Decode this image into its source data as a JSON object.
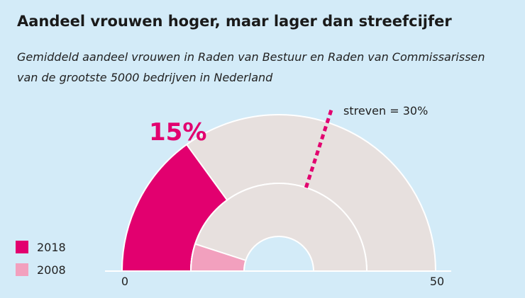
{
  "title": "Aandeel vrouwen hoger, maar lager dan streefcijfer",
  "subtitle": "Gemiddeld aandeel vrouwen in Raden van Bestuur en Raden van Commissarissen van de grootste 5000 bedrijven in Nederland",
  "colors": {
    "background": "#d3ebf8",
    "series_2018": "#e2006f",
    "series_2008": "#f2a0be",
    "track": "#e7e0de",
    "target": "#e2006f"
  },
  "chart_data": {
    "type": "gauge",
    "scale_min": 0,
    "scale_max": 50,
    "tick_labels": [
      "0",
      "50"
    ],
    "value_label": "15%",
    "target_label": "streven = 30%",
    "target": 30,
    "series": [
      {
        "name": "2018",
        "value": 15
      },
      {
        "name": "2008",
        "value": 5
      }
    ]
  },
  "legend": [
    {
      "label": "2018",
      "color": "#e2006f"
    },
    {
      "label": "2008",
      "color": "#f2a0be"
    }
  ]
}
